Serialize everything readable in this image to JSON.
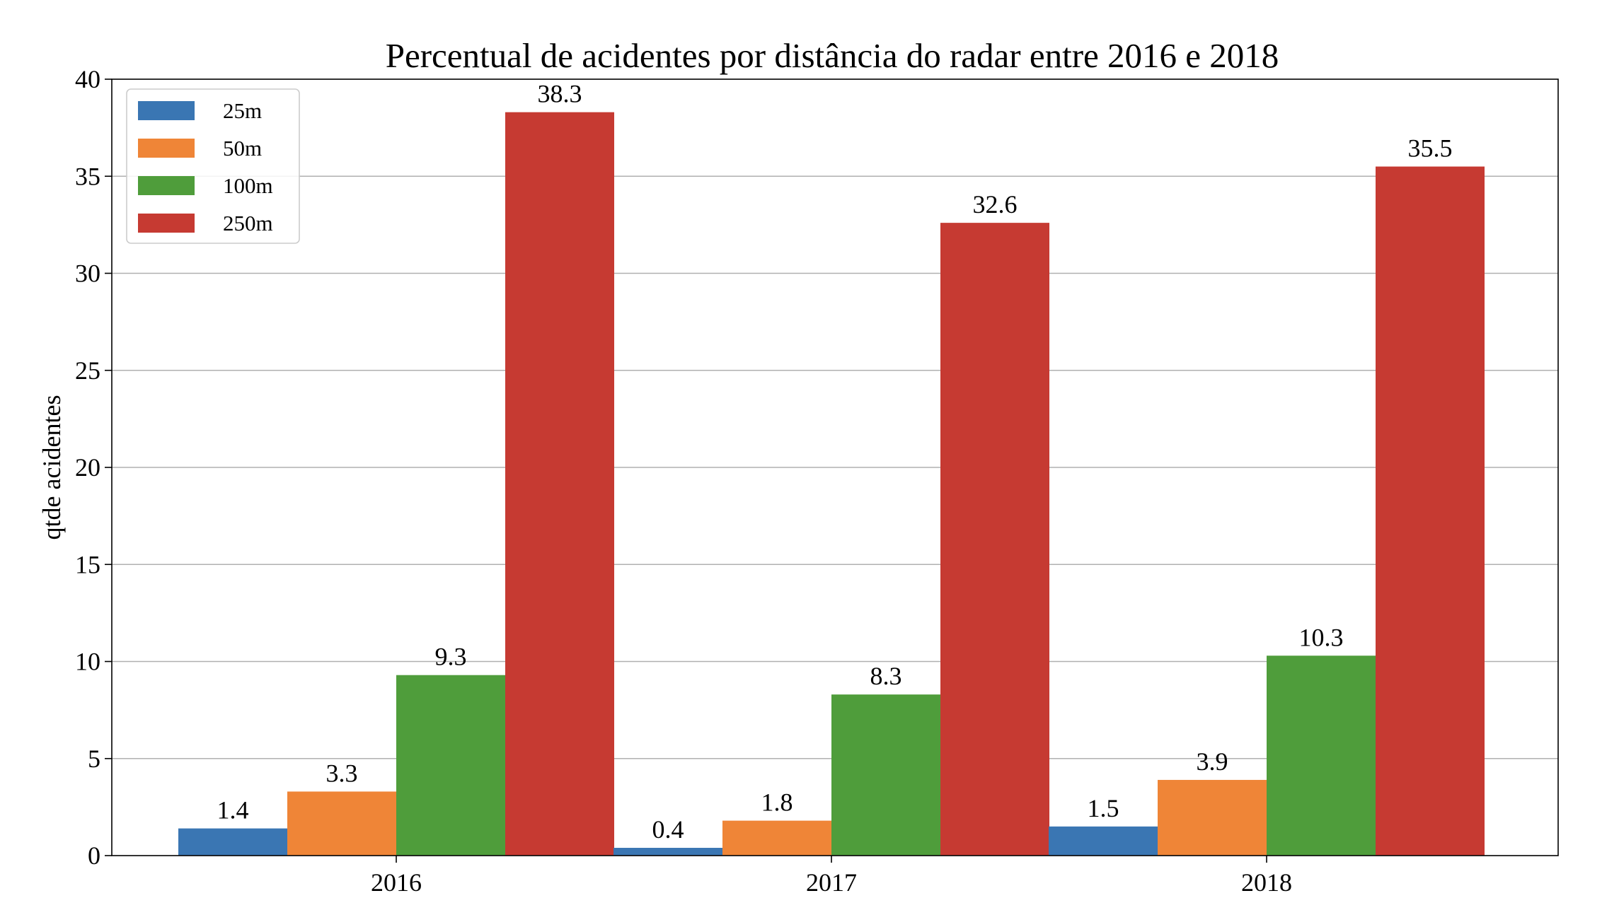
{
  "chart_data": {
    "type": "bar",
    "title": "Percentual de acidentes por distância do radar entre 2016 e 2018",
    "xlabel": "",
    "ylabel": "qtde acidentes",
    "categories": [
      "2016",
      "2017",
      "2018"
    ],
    "series": [
      {
        "name": "25m",
        "color": "#3a76b3",
        "values": [
          1.4,
          0.4,
          1.5
        ]
      },
      {
        "name": "50m",
        "color": "#ef8537",
        "values": [
          3.3,
          1.8,
          3.9
        ]
      },
      {
        "name": "100m",
        "color": "#4f9d3b",
        "values": [
          9.3,
          8.3,
          10.3
        ]
      },
      {
        "name": "250m",
        "color": "#c63a32",
        "values": [
          38.3,
          32.6,
          35.5
        ]
      }
    ],
    "data_labels": [
      [
        "1.4",
        "0.4",
        "1.5"
      ],
      [
        "3.3",
        "1.8",
        "3.9"
      ],
      [
        "9.3",
        "8.3",
        "10.3"
      ],
      [
        "38.3",
        "32.6",
        "35.5"
      ]
    ],
    "ylim": [
      0,
      40
    ],
    "yticks": [
      0,
      5,
      10,
      15,
      20,
      25,
      30,
      35,
      40
    ],
    "ytick_labels": [
      "0",
      "5",
      "10",
      "15",
      "20",
      "25",
      "30",
      "35",
      "40"
    ],
    "grid": "y-axis",
    "legend": "top-left"
  }
}
